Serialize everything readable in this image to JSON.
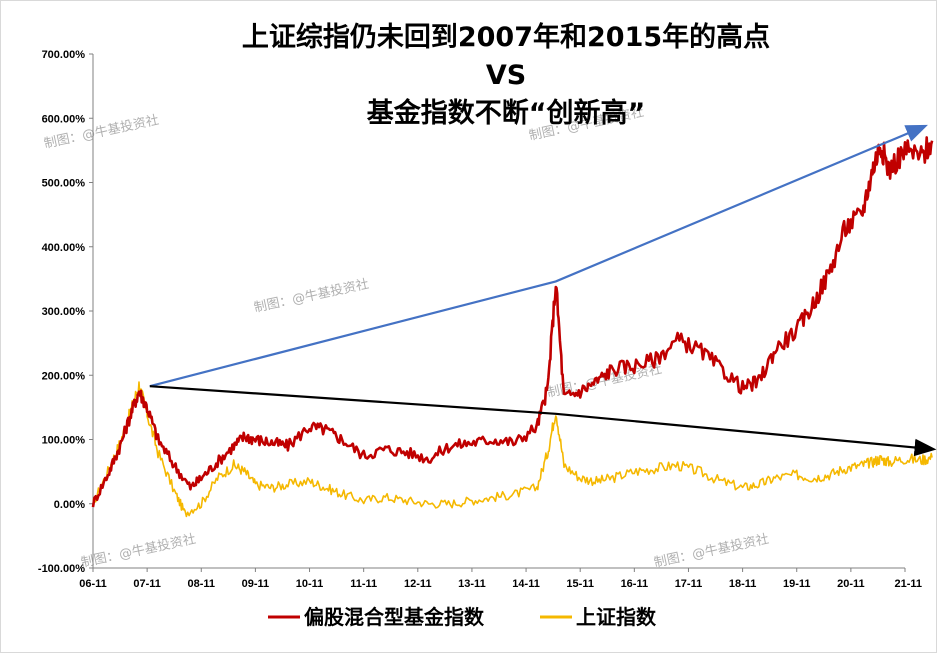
{
  "chart_data": {
    "type": "line",
    "title_lines": [
      "上证综指仍未回到2007年和2015年的高点",
      "VS",
      "基金指数不断“创新高”"
    ],
    "categories": [
      "06-11",
      "07-11",
      "08-11",
      "09-11",
      "10-11",
      "11-11",
      "12-11",
      "13-11",
      "14-11",
      "15-11",
      "16-11",
      "17-11",
      "18-11",
      "19-11",
      "20-11",
      "21-11"
    ],
    "y_ticks": [
      "700.00%",
      "600.00%",
      "500.00%",
      "400.00%",
      "300.00%",
      "200.00%",
      "100.00%",
      "0.00%",
      "-100.00%"
    ],
    "ylim": [
      -100,
      700
    ],
    "grid": false,
    "legend_position": "bottom",
    "watermark": "制图：@牛基投资社",
    "series": [
      {
        "name": "偏股混合型基金指数",
        "color": "#c00000",
        "points": [
          [
            0,
            0
          ],
          [
            0.3,
            50
          ],
          [
            0.5,
            90
          ],
          [
            0.7,
            140
          ],
          [
            0.85,
            175
          ],
          [
            1.0,
            150
          ],
          [
            1.2,
            100
          ],
          [
            1.5,
            60
          ],
          [
            1.8,
            25
          ],
          [
            2.0,
            40
          ],
          [
            2.3,
            65
          ],
          [
            2.6,
            90
          ],
          [
            2.8,
            105
          ],
          [
            3.0,
            100
          ],
          [
            3.3,
            95
          ],
          [
            3.6,
            90
          ],
          [
            4.0,
            120
          ],
          [
            4.3,
            115
          ],
          [
            4.6,
            100
          ],
          [
            5.0,
            75
          ],
          [
            5.4,
            85
          ],
          [
            5.8,
            80
          ],
          [
            6.2,
            70
          ],
          [
            6.6,
            90
          ],
          [
            7.0,
            95
          ],
          [
            7.4,
            100
          ],
          [
            7.8,
            95
          ],
          [
            8.2,
            120
          ],
          [
            8.4,
            180
          ],
          [
            8.55,
            345
          ],
          [
            8.7,
            165
          ],
          [
            9.0,
            175
          ],
          [
            9.3,
            190
          ],
          [
            9.6,
            210
          ],
          [
            10.0,
            215
          ],
          [
            10.4,
            225
          ],
          [
            10.8,
            255
          ],
          [
            11.2,
            240
          ],
          [
            11.6,
            210
          ],
          [
            12.0,
            180
          ],
          [
            12.3,
            190
          ],
          [
            12.6,
            240
          ],
          [
            13.0,
            270
          ],
          [
            13.3,
            310
          ],
          [
            13.6,
            360
          ],
          [
            13.9,
            430
          ],
          [
            14.2,
            450
          ],
          [
            14.4,
            520
          ],
          [
            14.55,
            560
          ],
          [
            14.7,
            520
          ],
          [
            15.0,
            550
          ],
          [
            15.3,
            540
          ],
          [
            15.5,
            565
          ]
        ]
      },
      {
        "name": "上证指数",
        "color": "#f5b800",
        "points": [
          [
            0,
            0
          ],
          [
            0.3,
            55
          ],
          [
            0.5,
            95
          ],
          [
            0.7,
            145
          ],
          [
            0.85,
            185
          ],
          [
            1.0,
            140
          ],
          [
            1.2,
            80
          ],
          [
            1.5,
            20
          ],
          [
            1.7,
            -15
          ],
          [
            2.0,
            0
          ],
          [
            2.3,
            40
          ],
          [
            2.6,
            60
          ],
          [
            2.8,
            50
          ],
          [
            3.0,
            30
          ],
          [
            3.3,
            25
          ],
          [
            3.6,
            30
          ],
          [
            4.0,
            35
          ],
          [
            4.3,
            25
          ],
          [
            4.6,
            15
          ],
          [
            5.0,
            5
          ],
          [
            5.4,
            10
          ],
          [
            5.8,
            5
          ],
          [
            6.2,
            0
          ],
          [
            6.6,
            0
          ],
          [
            7.0,
            5
          ],
          [
            7.4,
            10
          ],
          [
            7.8,
            15
          ],
          [
            8.2,
            25
          ],
          [
            8.4,
            80
          ],
          [
            8.55,
            145
          ],
          [
            8.7,
            60
          ],
          [
            9.0,
            40
          ],
          [
            9.3,
            35
          ],
          [
            9.6,
            40
          ],
          [
            10.0,
            50
          ],
          [
            10.4,
            55
          ],
          [
            10.8,
            60
          ],
          [
            11.2,
            50
          ],
          [
            11.6,
            35
          ],
          [
            12.0,
            25
          ],
          [
            12.3,
            30
          ],
          [
            12.6,
            40
          ],
          [
            13.0,
            45
          ],
          [
            13.3,
            40
          ],
          [
            13.6,
            45
          ],
          [
            13.9,
            55
          ],
          [
            14.2,
            60
          ],
          [
            14.4,
            65
          ],
          [
            14.55,
            70
          ],
          [
            14.7,
            65
          ],
          [
            15.0,
            70
          ],
          [
            15.3,
            68
          ],
          [
            15.5,
            72
          ]
        ]
      }
    ],
    "annotations": [
      {
        "name": "blue-upper-trend-arrow",
        "color": "#4472c4",
        "points": [
          [
            1.05,
            183
          ],
          [
            8.55,
            346
          ],
          [
            15.35,
            587
          ]
        ]
      },
      {
        "name": "black-lower-trend-arrow",
        "color": "#000000",
        "points": [
          [
            1.05,
            183
          ],
          [
            8.55,
            140
          ],
          [
            15.5,
            85
          ]
        ]
      }
    ]
  }
}
